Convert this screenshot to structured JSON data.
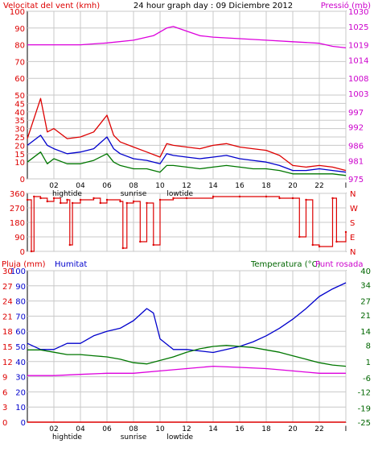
{
  "header": {
    "left_label": "Velocitat del vent (kmh)",
    "title": "24 hour graph day : 09 Diciembre 2012",
    "right_label": "Pressió (mb)"
  },
  "time_axis": {
    "hour_labels": [
      "02",
      "04",
      "06",
      "08",
      "10",
      "12",
      "14",
      "16",
      "18",
      "20",
      "22",
      "I"
    ],
    "events": [
      "hightide",
      "sunrise",
      "lowtide"
    ]
  },
  "colors": {
    "red": "#dd0000",
    "blue": "#0000cc",
    "green": "#007700",
    "magenta": "#dd00dd",
    "pressure_label": "#cc00cc",
    "temp_label": "#006600",
    "grid": "#c8c8c8"
  },
  "chart_data": [
    {
      "type": "line",
      "title": "",
      "xlabel": "",
      "ylabel": "Velocitat del vent (kmh)",
      "y2label": "Pressió (mb)",
      "ylim": [
        0,
        100
      ],
      "y_ticks": [
        0,
        10,
        15,
        20,
        25,
        30,
        35,
        40,
        45,
        50,
        60,
        70,
        80,
        90,
        100
      ],
      "y2lim": [
        975,
        1030
      ],
      "y2_ticks": [
        975,
        981,
        986,
        992,
        997,
        1003,
        1008,
        1014,
        1019,
        1025,
        1030
      ],
      "x_unit": "hour",
      "grid": true,
      "series": [
        {
          "name": "",
          "color": "red",
          "axis": "y",
          "points": [
            [
              0,
              24
            ],
            [
              1,
              48
            ],
            [
              1.5,
              28
            ],
            [
              2,
              30
            ],
            [
              3,
              24
            ],
            [
              4,
              25
            ],
            [
              5,
              28
            ],
            [
              6,
              38
            ],
            [
              6.5,
              26
            ],
            [
              7,
              22
            ],
            [
              8,
              19
            ],
            [
              9,
              16
            ],
            [
              10,
              13
            ],
            [
              10.5,
              21
            ],
            [
              11,
              20
            ],
            [
              12,
              19
            ],
            [
              13,
              18
            ],
            [
              14,
              20
            ],
            [
              15,
              21
            ],
            [
              16,
              19
            ],
            [
              17,
              18
            ],
            [
              18,
              17
            ],
            [
              19,
              14
            ],
            [
              20,
              8
            ],
            [
              21,
              7
            ],
            [
              22,
              8
            ],
            [
              23,
              7
            ],
            [
              24,
              5
            ]
          ]
        },
        {
          "name": "",
          "color": "blue",
          "axis": "y",
          "points": [
            [
              0,
              20
            ],
            [
              1,
              26
            ],
            [
              1.5,
              20
            ],
            [
              2,
              18
            ],
            [
              3,
              15
            ],
            [
              4,
              16
            ],
            [
              5,
              18
            ],
            [
              6,
              25
            ],
            [
              6.5,
              18
            ],
            [
              7,
              15
            ],
            [
              8,
              12
            ],
            [
              9,
              11
            ],
            [
              10,
              9
            ],
            [
              10.5,
              15
            ],
            [
              11,
              14
            ],
            [
              12,
              13
            ],
            [
              13,
              12
            ],
            [
              14,
              13
            ],
            [
              15,
              14
            ],
            [
              16,
              12
            ],
            [
              17,
              11
            ],
            [
              18,
              10
            ],
            [
              19,
              8
            ],
            [
              20,
              5
            ],
            [
              21,
              5
            ],
            [
              22,
              6
            ],
            [
              23,
              5
            ],
            [
              24,
              4
            ]
          ]
        },
        {
          "name": "",
          "color": "green",
          "axis": "y",
          "points": [
            [
              0,
              10
            ],
            [
              1,
              16
            ],
            [
              1.5,
              9
            ],
            [
              2,
              12
            ],
            [
              3,
              9
            ],
            [
              4,
              9
            ],
            [
              5,
              11
            ],
            [
              6,
              15
            ],
            [
              6.5,
              10
            ],
            [
              7,
              8
            ],
            [
              8,
              6
            ],
            [
              9,
              6
            ],
            [
              10,
              4
            ],
            [
              10.5,
              8
            ],
            [
              11,
              8
            ],
            [
              12,
              7
            ],
            [
              13,
              6
            ],
            [
              14,
              7
            ],
            [
              15,
              8
            ],
            [
              16,
              7
            ],
            [
              17,
              6
            ],
            [
              18,
              6
            ],
            [
              19,
              5
            ],
            [
              20,
              3
            ],
            [
              21,
              3
            ],
            [
              22,
              3
            ],
            [
              23,
              3
            ],
            [
              24,
              2
            ]
          ]
        },
        {
          "name": "",
          "color": "magenta",
          "axis": "y2",
          "points": [
            [
              0,
              1019
            ],
            [
              4,
              1019
            ],
            [
              6,
              1019.6
            ],
            [
              8,
              1020.5
            ],
            [
              9.5,
              1022
            ],
            [
              10.5,
              1024.5
            ],
            [
              11,
              1025
            ],
            [
              12,
              1023.5
            ],
            [
              13,
              1022
            ],
            [
              14,
              1021.5
            ],
            [
              16,
              1021
            ],
            [
              18,
              1020.5
            ],
            [
              20,
              1020
            ],
            [
              22,
              1019.5
            ],
            [
              23,
              1018.5
            ],
            [
              24,
              1018
            ]
          ]
        }
      ]
    },
    {
      "type": "scatter",
      "title": "",
      "ylabel": "",
      "ylim": [
        0,
        360
      ],
      "y_ticks": [
        0,
        90,
        180,
        270,
        360
      ],
      "y2_labels": [
        "N",
        "W",
        "S",
        "E",
        "N"
      ],
      "x_unit": "hour",
      "grid": true,
      "series": [
        {
          "name": "",
          "color": "red",
          "points": [
            [
              0,
              320
            ],
            [
              0.3,
              0
            ],
            [
              0.5,
              340
            ],
            [
              1,
              330
            ],
            [
              1.5,
              310
            ],
            [
              2,
              330
            ],
            [
              2.5,
              300
            ],
            [
              3,
              320
            ],
            [
              3.2,
              40
            ],
            [
              3.4,
              300
            ],
            [
              4,
              320
            ],
            [
              5,
              330
            ],
            [
              5.5,
              300
            ],
            [
              6,
              320
            ],
            [
              7,
              310
            ],
            [
              7.2,
              20
            ],
            [
              7.5,
              300
            ],
            [
              8,
              310
            ],
            [
              8.5,
              60
            ],
            [
              9,
              300
            ],
            [
              9.5,
              40
            ],
            [
              10,
              320
            ],
            [
              11,
              330
            ],
            [
              12,
              330
            ],
            [
              14,
              340
            ],
            [
              16,
              340
            ],
            [
              18,
              340
            ],
            [
              19,
              330
            ],
            [
              20,
              330
            ],
            [
              20.5,
              90
            ],
            [
              21,
              320
            ],
            [
              21.5,
              40
            ],
            [
              22,
              30
            ],
            [
              23,
              330
            ],
            [
              23.3,
              60
            ],
            [
              24,
              120
            ]
          ]
        }
      ]
    },
    {
      "type": "line",
      "title": "",
      "ylabel": "Pluja (mm)",
      "y_ticks_rain": [
        0,
        3,
        6,
        9,
        12,
        15,
        18,
        21,
        24,
        27,
        30
      ],
      "y_ticks_humidity": [
        0,
        10,
        20,
        30,
        40,
        50,
        60,
        70,
        80,
        90,
        100
      ],
      "y2label": "Temperatura (°C)",
      "y2_extra_label": "Punt rosada",
      "y2lim": [
        -25,
        40
      ],
      "y2_ticks": [
        -25,
        -19,
        -12,
        -6,
        1,
        8,
        14,
        21,
        27,
        34,
        40
      ],
      "humitat_label": "Humitat",
      "x_unit": "hour",
      "grid": true,
      "series": [
        {
          "name": "Humitat",
          "color": "blue",
          "axis": "humidity",
          "points": [
            [
              0,
              52
            ],
            [
              1,
              48
            ],
            [
              2,
              48
            ],
            [
              3,
              52
            ],
            [
              4,
              52
            ],
            [
              5,
              57
            ],
            [
              6,
              60
            ],
            [
              7,
              62
            ],
            [
              8,
              67
            ],
            [
              9,
              75
            ],
            [
              9.5,
              72
            ],
            [
              10,
              55
            ],
            [
              11,
              48
            ],
            [
              12,
              48
            ],
            [
              13,
              47
            ],
            [
              14,
              46
            ],
            [
              15,
              48
            ],
            [
              16,
              50
            ],
            [
              17,
              53
            ],
            [
              18,
              57
            ],
            [
              19,
              62
            ],
            [
              20,
              68
            ],
            [
              21,
              75
            ],
            [
              22,
              83
            ],
            [
              23,
              88
            ],
            [
              24,
              92
            ]
          ]
        },
        {
          "name": "Temperatura (°C)",
          "color": "green",
          "axis": "temp",
          "points": [
            [
              0,
              6
            ],
            [
              1,
              6
            ],
            [
              2,
              5
            ],
            [
              3,
              4
            ],
            [
              4,
              4
            ],
            [
              5,
              3.5
            ],
            [
              6,
              3
            ],
            [
              7,
              2
            ],
            [
              8,
              0.5
            ],
            [
              9,
              0
            ],
            [
              10,
              1.5
            ],
            [
              11,
              3
            ],
            [
              12,
              5
            ],
            [
              13,
              6.5
            ],
            [
              14,
              7.5
            ],
            [
              15,
              8
            ],
            [
              16,
              7.5
            ],
            [
              17,
              7
            ],
            [
              18,
              6
            ],
            [
              19,
              5
            ],
            [
              20,
              3.5
            ],
            [
              21,
              2
            ],
            [
              22,
              0.5
            ],
            [
              23,
              -0.5
            ],
            [
              24,
              -1
            ]
          ]
        },
        {
          "name": "Punt rosada",
          "color": "magenta",
          "axis": "temp",
          "points": [
            [
              0,
              -5
            ],
            [
              2,
              -5
            ],
            [
              4,
              -4.5
            ],
            [
              6,
              -4
            ],
            [
              8,
              -4
            ],
            [
              10,
              -3
            ],
            [
              12,
              -2
            ],
            [
              14,
              -1
            ],
            [
              16,
              -1.5
            ],
            [
              18,
              -2
            ],
            [
              20,
              -3
            ],
            [
              22,
              -4
            ],
            [
              24,
              -4
            ]
          ]
        },
        {
          "name": "Pluja (mm)",
          "color": "red",
          "axis": "rain",
          "points": [
            [
              0,
              0
            ],
            [
              24,
              0
            ]
          ]
        }
      ]
    }
  ]
}
